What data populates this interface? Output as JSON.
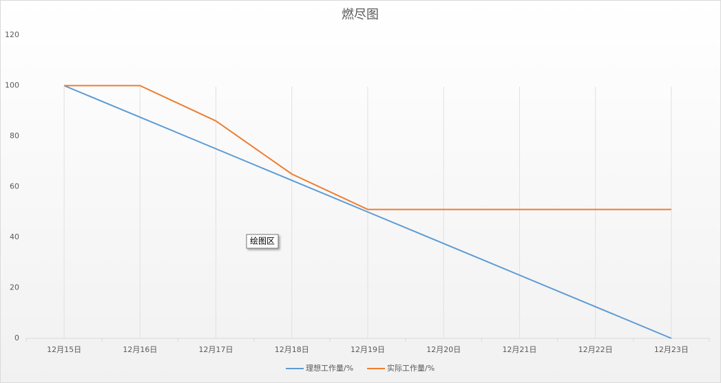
{
  "chart_data": {
    "type": "line",
    "title": "燃尽图",
    "categories": [
      "12月15日",
      "12月16日",
      "12月17日",
      "12月18日",
      "12月19日",
      "12月20日",
      "12月21日",
      "12月22日",
      "12月23日"
    ],
    "series": [
      {
        "name": "理想工作量/%",
        "color": "#5b9bd5",
        "values": [
          100,
          87.5,
          75,
          62.5,
          50,
          37.5,
          25,
          12.5,
          0
        ]
      },
      {
        "name": "实际工作量/%",
        "color": "#ed7d31",
        "values": [
          100,
          100,
          86,
          65,
          51,
          51,
          51,
          51,
          51
        ]
      }
    ],
    "ylim": [
      0,
      120
    ],
    "yticks": [
      0,
      20,
      40,
      60,
      80,
      100,
      120
    ],
    "grid": true,
    "annotation": "绘图区"
  }
}
